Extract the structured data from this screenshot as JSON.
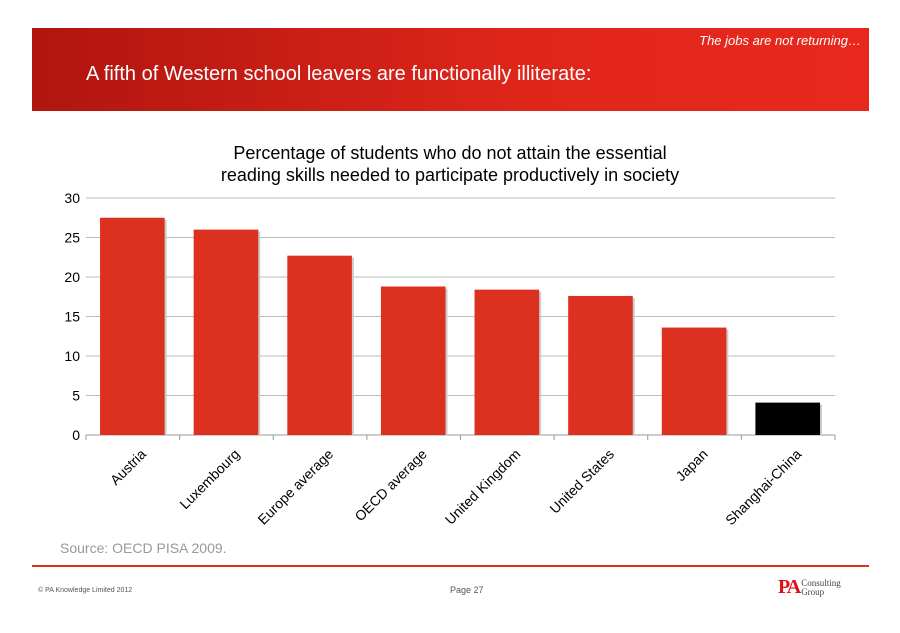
{
  "header": {
    "tagline": "The jobs are not returning…",
    "title": "A fifth of Western school leavers are functionally illiterate:"
  },
  "chart_data": {
    "type": "bar",
    "title_line1": "Percentage of students who do not attain the essential",
    "title_line2": "reading skills needed to participate productively in society",
    "categories": [
      "Austria",
      "Luxembourg",
      "Europe average",
      "OECD average",
      "United Kingdom",
      "United States",
      "Japan",
      "Shanghai-China"
    ],
    "values": [
      27.5,
      26.0,
      22.7,
      18.8,
      18.4,
      17.6,
      13.6,
      4.1
    ],
    "colors": [
      "#dc3120",
      "#dc3120",
      "#dc3120",
      "#dc3120",
      "#dc3120",
      "#dc3120",
      "#dc3120",
      "#000000"
    ],
    "ylim": [
      0,
      30
    ],
    "yticks": [
      0,
      5,
      10,
      15,
      20,
      25,
      30
    ],
    "grid": true
  },
  "footer": {
    "source": "Source: OECD PISA 2009.",
    "copyright": "© PA Knowledge Limited 2012",
    "page": "Page 27",
    "logo_text": "PA Consulting Group",
    "logo_pa": "PA",
    "logo_line1": "Consulting",
    "logo_line2": "Group"
  }
}
